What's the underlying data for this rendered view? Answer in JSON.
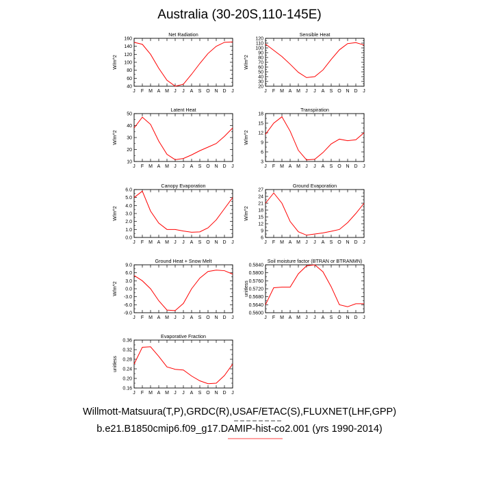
{
  "page": {
    "title": "Australia (30-20S,110-145E)",
    "footer_line1": "Willmott-Matsuura(T,P),GRDC(R),USAF/ETAC(S),FLUXNET(LHF,GPP)",
    "footer_line2": "b.e21.B1850cmip6.f09_g17.DAMIP-hist-co2.001 (yrs 1990-2014)"
  },
  "colors": {
    "series": "#ff0000",
    "axis": "#000000",
    "footer_underline": "#ff0000"
  },
  "chart_data": [
    {
      "type": "line",
      "title": "Net Radiation",
      "ylabel": "W/m^2",
      "xlabel": "",
      "categories": [
        "J",
        "F",
        "M",
        "A",
        "M",
        "J",
        "J",
        "A",
        "S",
        "O",
        "N",
        "D",
        "J"
      ],
      "ylim": [
        40,
        160
      ],
      "yticks": [
        "40",
        "60",
        "80",
        "100",
        "120",
        "140",
        "160"
      ],
      "values": [
        150,
        145,
        120,
        85,
        55,
        40,
        45,
        70,
        97,
        122,
        140,
        150,
        151
      ]
    },
    {
      "type": "line",
      "title": "Sensible Heat",
      "ylabel": "W/m^2",
      "xlabel": "",
      "categories": [
        "J",
        "F",
        "M",
        "A",
        "M",
        "J",
        "J",
        "A",
        "S",
        "O",
        "N",
        "D",
        "J"
      ],
      "ylim": [
        20,
        120
      ],
      "yticks": [
        "20",
        "30",
        "40",
        "50",
        "60",
        "70",
        "80",
        "90",
        "100",
        "110",
        "120"
      ],
      "values": [
        108,
        95,
        82,
        66,
        49,
        38,
        40,
        54,
        76,
        96,
        109,
        111,
        106
      ]
    },
    {
      "type": "line",
      "title": "Latent Heat",
      "ylabel": "W/m^2",
      "xlabel": "",
      "categories": [
        "J",
        "F",
        "M",
        "A",
        "M",
        "J",
        "J",
        "A",
        "S",
        "O",
        "N",
        "D",
        "J"
      ],
      "ylim": [
        10,
        50
      ],
      "yticks": [
        "10",
        "20",
        "30",
        "40",
        "50"
      ],
      "values": [
        38,
        47,
        41,
        27,
        16,
        11.5,
        12.5,
        15.5,
        19,
        22,
        25,
        31,
        38
      ]
    },
    {
      "type": "line",
      "title": "Transpiration",
      "ylabel": "W/m^2",
      "xlabel": "",
      "categories": [
        "J",
        "F",
        "M",
        "A",
        "M",
        "J",
        "J",
        "A",
        "S",
        "O",
        "N",
        "D",
        "J"
      ],
      "ylim": [
        3,
        18
      ],
      "yticks": [
        "3",
        "6",
        "9",
        "12",
        "15",
        "18"
      ],
      "values": [
        11.5,
        15,
        17,
        12.5,
        6.5,
        3.5,
        3.7,
        5.8,
        8.5,
        10,
        9.5,
        9.8,
        12
      ]
    },
    {
      "type": "line",
      "title": "Canopy Evaporation",
      "ylabel": "W/m^2",
      "xlabel": "",
      "categories": [
        "J",
        "F",
        "M",
        "A",
        "M",
        "J",
        "J",
        "A",
        "S",
        "O",
        "N",
        "D",
        "J"
      ],
      "ylim": [
        0,
        6
      ],
      "yticks": [
        "0.0",
        "1.0",
        "2.0",
        "3.0",
        "4.0",
        "5.0",
        "6.0"
      ],
      "values": [
        5.0,
        5.8,
        3.3,
        1.8,
        1.0,
        1.0,
        0.8,
        0.65,
        0.7,
        1.2,
        2.2,
        3.6,
        5.0
      ]
    },
    {
      "type": "line",
      "title": "Ground Evaporation",
      "ylabel": "W/m^2",
      "xlabel": "",
      "categories": [
        "J",
        "F",
        "M",
        "A",
        "M",
        "J",
        "J",
        "A",
        "S",
        "O",
        "N",
        "D",
        "J"
      ],
      "ylim": [
        6,
        27
      ],
      "yticks": [
        "6",
        "9",
        "12",
        "15",
        "18",
        "21",
        "24",
        "27"
      ],
      "values": [
        21,
        25.5,
        21,
        13,
        8.5,
        7,
        7.5,
        8,
        8.7,
        9.5,
        12.5,
        16.5,
        21
      ]
    },
    {
      "type": "line",
      "title": "Ground Heat + Snow Melt",
      "ylabel": "W/m^2",
      "xlabel": "",
      "categories": [
        "J",
        "F",
        "M",
        "A",
        "M",
        "J",
        "J",
        "A",
        "S",
        "O",
        "N",
        "D",
        "J"
      ],
      "ylim": [
        -9,
        9
      ],
      "yticks": [
        "-9.0",
        "-6.0",
        "-3.0",
        "0.0",
        "3.0",
        "6.0",
        "9.0"
      ],
      "values": [
        5.0,
        3.0,
        0.0,
        -4.5,
        -8.0,
        -8.2,
        -5.5,
        0.0,
        4.0,
        6.5,
        7.0,
        6.8,
        5.5
      ]
    },
    {
      "type": "line",
      "title": "Soil moisture factor (BTRAN or BTRANMN)",
      "ylabel": "unitless",
      "xlabel": "",
      "categories": [
        "J",
        "F",
        "M",
        "A",
        "M",
        "J",
        "J",
        "A",
        "S",
        "O",
        "N",
        "D",
        "J"
      ],
      "ylim": [
        0.56,
        0.584
      ],
      "yticks": [
        "0.5600",
        "0.5640",
        "0.5680",
        "0.5720",
        "0.5760",
        "0.5800",
        "0.5840"
      ],
      "values": [
        0.564,
        0.5725,
        0.5728,
        0.5728,
        0.5795,
        0.5835,
        0.584,
        0.5805,
        0.573,
        0.564,
        0.563,
        0.5645,
        0.5645
      ]
    },
    {
      "type": "line",
      "title": "Evaporative Fraction",
      "ylabel": "unitless",
      "xlabel": "",
      "categories": [
        "J",
        "F",
        "M",
        "A",
        "M",
        "J",
        "J",
        "A",
        "S",
        "O",
        "N",
        "D",
        "J"
      ],
      "ylim": [
        0.16,
        0.36
      ],
      "yticks": [
        "0.16",
        "0.20",
        "0.24",
        "0.28",
        "0.32",
        "0.36"
      ],
      "values": [
        0.26,
        0.33,
        0.332,
        0.292,
        0.248,
        0.238,
        0.235,
        0.21,
        0.19,
        0.178,
        0.18,
        0.212,
        0.26
      ]
    }
  ]
}
